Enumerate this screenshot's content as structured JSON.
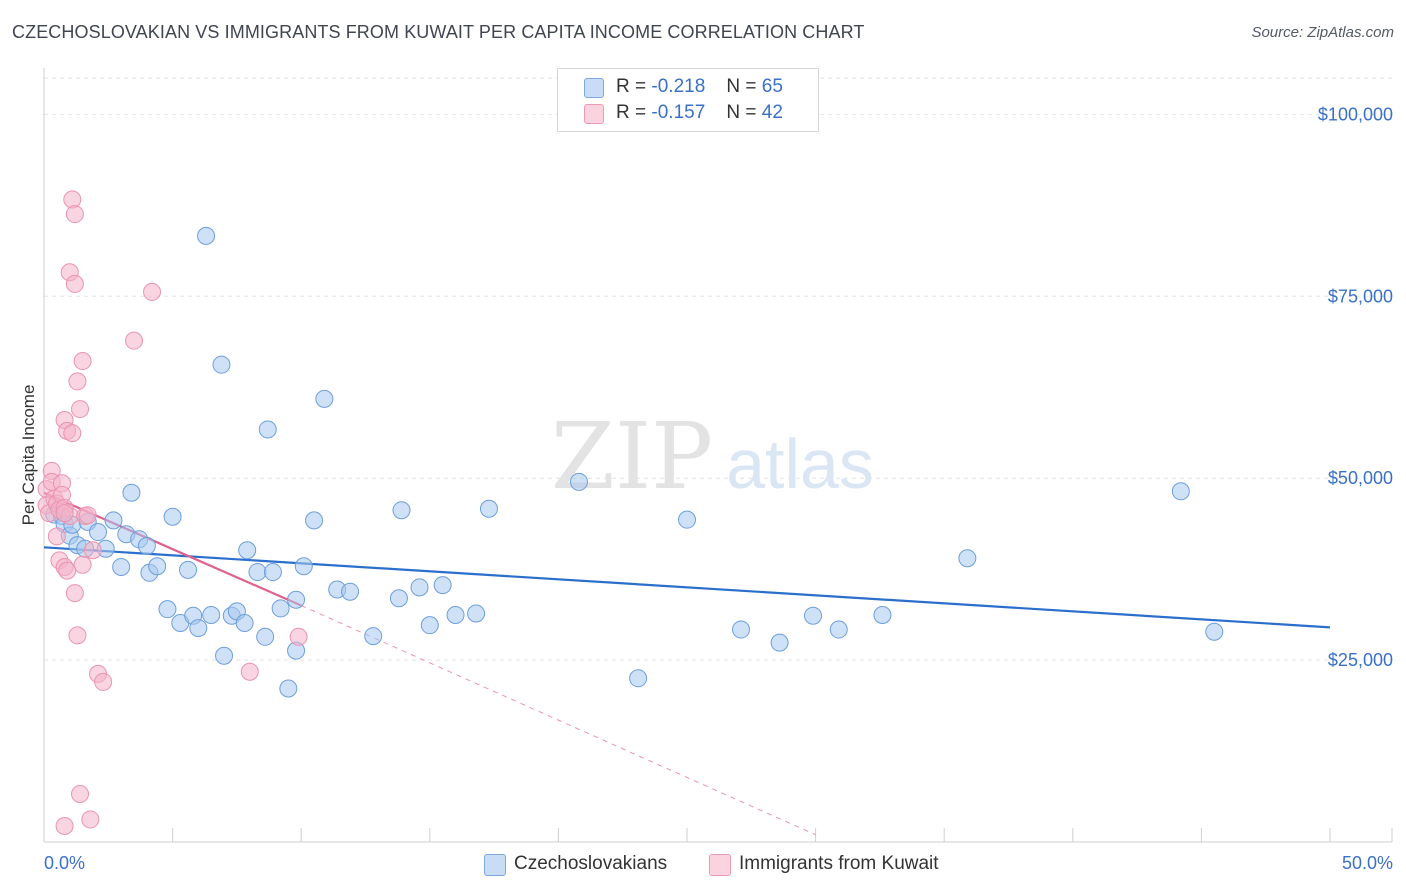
{
  "header": {
    "title": "CZECHOSLOVAKIAN VS IMMIGRANTS FROM KUWAIT PER CAPITA INCOME CORRELATION CHART",
    "source": "Source: ZipAtlas.com"
  },
  "watermark": {
    "zip": "ZIP",
    "atlas": "atlas"
  },
  "legend": {
    "rows": [
      {
        "r_label": "R =",
        "r_value": "-0.218",
        "n_label": "N =",
        "n_value": "65",
        "color": "#a8c8ef"
      },
      {
        "r_label": "R =",
        "r_value": "-0.157",
        "n_label": "N =",
        "n_value": "42",
        "color": "#f4b3c8"
      }
    ]
  },
  "bottom_legend": {
    "items": [
      {
        "label": "Czechoslovakians",
        "color": "#a8c8ef"
      },
      {
        "label": "Immigrants from Kuwait",
        "color": "#f4b3c8"
      }
    ]
  },
  "chart_data": {
    "type": "scatter",
    "title": "CZECHOSLOVAKIAN VS IMMIGRANTS FROM KUWAIT PER CAPITA INCOME CORRELATION CHART",
    "xlabel": "",
    "ylabel": "Per Capita Income",
    "xlim": [
      0,
      50
    ],
    "ylim": [
      0,
      105000
    ],
    "x_tick_labels": [
      "0.0%",
      "50.0%"
    ],
    "y_ticks": [
      {
        "value": 25000,
        "label": "$25,000"
      },
      {
        "value": 50000,
        "label": "$50,000"
      },
      {
        "value": 75000,
        "label": "$75,000"
      },
      {
        "value": 100000,
        "label": "$100,000"
      }
    ],
    "grid": true,
    "series": [
      {
        "name": "Czechoslovakians",
        "color": "#a8c8ef",
        "stroke": "#6d9fdc",
        "r": -0.218,
        "n": 65,
        "trend": {
          "x0": 0,
          "y0": 40500,
          "x1": 50,
          "y1": 29500,
          "color": "#2b6fcc"
        },
        "points": [
          [
            0.4,
            45000
          ],
          [
            0.7,
            44800
          ],
          [
            0.8,
            43700
          ],
          [
            1.0,
            42100
          ],
          [
            1.1,
            43600
          ],
          [
            1.3,
            40800
          ],
          [
            1.6,
            40300
          ],
          [
            1.7,
            44000
          ],
          [
            2.1,
            42600
          ],
          [
            2.4,
            40300
          ],
          [
            2.7,
            44200
          ],
          [
            3.0,
            37800
          ],
          [
            3.2,
            42300
          ],
          [
            3.4,
            48000
          ],
          [
            3.7,
            41600
          ],
          [
            4.0,
            40700
          ],
          [
            4.1,
            37000
          ],
          [
            4.4,
            37900
          ],
          [
            4.8,
            32000
          ],
          [
            5.0,
            44700
          ],
          [
            5.3,
            30100
          ],
          [
            5.6,
            37400
          ],
          [
            5.8,
            31100
          ],
          [
            6.0,
            29400
          ],
          [
            6.3,
            83300
          ],
          [
            6.5,
            31200
          ],
          [
            6.9,
            65600
          ],
          [
            7.0,
            25600
          ],
          [
            7.3,
            31100
          ],
          [
            7.5,
            31700
          ],
          [
            7.8,
            30100
          ],
          [
            7.9,
            40100
          ],
          [
            8.3,
            37100
          ],
          [
            8.6,
            28200
          ],
          [
            8.7,
            56700
          ],
          [
            8.9,
            37100
          ],
          [
            9.2,
            32100
          ],
          [
            9.5,
            21100
          ],
          [
            9.8,
            26300
          ],
          [
            9.8,
            33300
          ],
          [
            10.1,
            37900
          ],
          [
            10.5,
            44200
          ],
          [
            10.9,
            60900
          ],
          [
            11.4,
            34700
          ],
          [
            11.9,
            34400
          ],
          [
            12.8,
            28300
          ],
          [
            13.8,
            33500
          ],
          [
            13.9,
            45600
          ],
          [
            14.6,
            35000
          ],
          [
            15.0,
            29800
          ],
          [
            15.5,
            35300
          ],
          [
            16.0,
            31200
          ],
          [
            16.8,
            31400
          ],
          [
            17.3,
            45800
          ],
          [
            20.8,
            49500
          ],
          [
            23.1,
            22500
          ],
          [
            25.0,
            44300
          ],
          [
            27.1,
            29200
          ],
          [
            28.6,
            27400
          ],
          [
            29.9,
            31100
          ],
          [
            30.9,
            29200
          ],
          [
            32.6,
            31200
          ],
          [
            35.9,
            39000
          ],
          [
            44.2,
            48200
          ],
          [
            45.5,
            28900
          ]
        ]
      },
      {
        "name": "Immigrants from Kuwait",
        "color": "#f4b3c8",
        "stroke": "#e994b0",
        "r": -0.157,
        "n": 42,
        "trend": {
          "x0": 0,
          "y0": 48000,
          "x1": 10,
          "y1": 32500,
          "color": "#e0608e"
        },
        "trend_dashed": {
          "x0": 10,
          "y0": 32500,
          "x1": 30,
          "y1": 1000,
          "color": "#e994b0"
        },
        "points": [
          [
            0.1,
            48500
          ],
          [
            0.1,
            46300
          ],
          [
            0.2,
            45200
          ],
          [
            0.3,
            51000
          ],
          [
            0.3,
            49500
          ],
          [
            0.4,
            47200
          ],
          [
            0.5,
            46500
          ],
          [
            0.5,
            42000
          ],
          [
            0.6,
            45700
          ],
          [
            0.6,
            38700
          ],
          [
            0.7,
            49300
          ],
          [
            0.7,
            47700
          ],
          [
            0.8,
            58000
          ],
          [
            0.8,
            45900
          ],
          [
            0.8,
            2200
          ],
          [
            0.8,
            37800
          ],
          [
            0.9,
            56500
          ],
          [
            0.9,
            37300
          ],
          [
            1.0,
            44800
          ],
          [
            1.0,
            78300
          ],
          [
            1.1,
            88300
          ],
          [
            1.1,
            56200
          ],
          [
            1.2,
            86300
          ],
          [
            1.2,
            34200
          ],
          [
            1.2,
            76700
          ],
          [
            1.3,
            28400
          ],
          [
            1.3,
            63300
          ],
          [
            1.4,
            59500
          ],
          [
            1.4,
            6600
          ],
          [
            1.5,
            66100
          ],
          [
            1.5,
            38100
          ],
          [
            1.6,
            44800
          ],
          [
            1.7,
            44900
          ],
          [
            1.8,
            3100
          ],
          [
            1.9,
            40100
          ],
          [
            2.1,
            23100
          ],
          [
            2.3,
            22000
          ],
          [
            3.5,
            68900
          ],
          [
            4.2,
            75600
          ],
          [
            8.0,
            23400
          ],
          [
            9.9,
            28200
          ],
          [
            0.8,
            45200
          ]
        ]
      }
    ]
  }
}
